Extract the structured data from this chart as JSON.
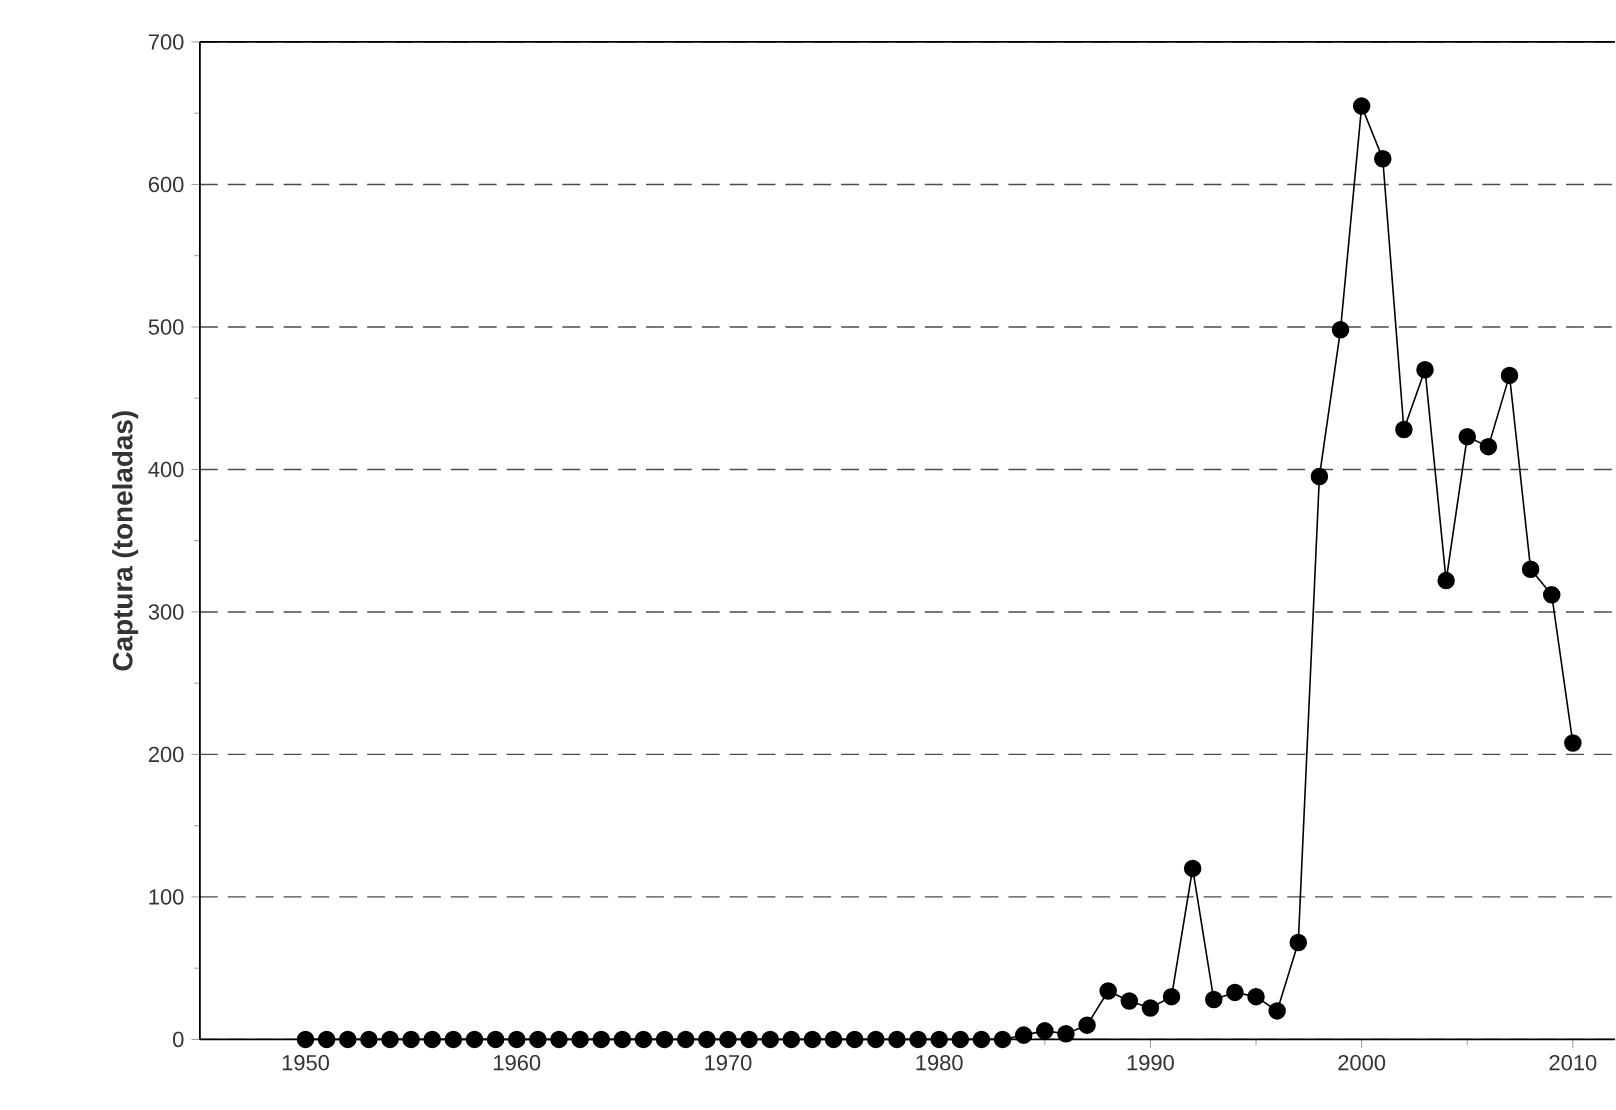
{
  "chart_data": {
    "type": "line",
    "ylabel": "Captura (toneladas)",
    "x": [
      1950,
      1951,
      1952,
      1953,
      1954,
      1955,
      1956,
      1957,
      1958,
      1959,
      1960,
      1961,
      1962,
      1963,
      1964,
      1965,
      1966,
      1967,
      1968,
      1969,
      1970,
      1971,
      1972,
      1973,
      1974,
      1975,
      1976,
      1977,
      1978,
      1979,
      1980,
      1981,
      1982,
      1983,
      1984,
      1985,
      1986,
      1987,
      1988,
      1989,
      1990,
      1991,
      1992,
      1993,
      1994,
      1995,
      1996,
      1997,
      1998,
      1999,
      2000,
      2001,
      2002,
      2003,
      2004,
      2005,
      2006,
      2007,
      2008,
      2009,
      2010
    ],
    "series": [
      {
        "color": "#000000",
        "values": [
          0,
          0,
          0,
          0,
          0,
          0,
          0,
          0,
          0,
          0,
          0,
          0,
          0,
          0,
          0,
          0,
          0,
          0,
          0,
          0,
          0,
          0,
          0,
          0,
          0,
          0,
          0,
          0,
          0,
          0,
          0,
          0,
          0,
          0,
          3,
          6,
          4,
          10,
          34,
          27,
          22,
          30,
          120,
          28,
          33,
          30,
          20,
          68,
          395,
          498,
          655,
          618,
          428,
          470,
          322,
          423,
          416,
          466,
          330,
          312,
          208
        ]
      }
    ],
    "xlim": [
      1945,
      2012
    ],
    "xticks": [
      1950,
      1960,
      1970,
      1980,
      1990,
      2000,
      2010
    ],
    "ylim": [
      0,
      700
    ],
    "yticks": [
      0,
      100,
      200,
      300,
      400,
      500,
      600,
      700
    ],
    "grid": "y",
    "marker": "circle",
    "line_style": "solid"
  }
}
